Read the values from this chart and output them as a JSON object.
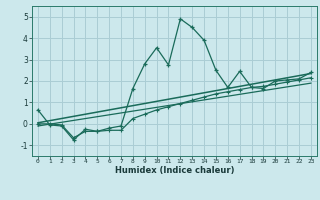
{
  "xlabel": "Humidex (Indice chaleur)",
  "bg_color": "#cce8ec",
  "grid_color": "#aacdd4",
  "line_color": "#1a6b5a",
  "xlim": [
    -0.5,
    23.5
  ],
  "ylim": [
    -1.5,
    5.5
  ],
  "xticks": [
    0,
    1,
    2,
    3,
    4,
    5,
    6,
    7,
    8,
    9,
    10,
    11,
    12,
    13,
    14,
    15,
    16,
    17,
    18,
    19,
    20,
    21,
    22,
    23
  ],
  "yticks": [
    -1,
    0,
    1,
    2,
    3,
    4,
    5
  ],
  "series1_x": [
    0,
    1,
    2,
    3,
    4,
    5,
    6,
    7,
    8,
    9,
    10,
    11,
    12,
    13,
    14,
    15,
    16,
    17,
    18,
    19,
    20,
    21,
    22,
    23
  ],
  "series1_y": [
    0.65,
    -0.05,
    -0.1,
    -0.75,
    -0.25,
    -0.35,
    -0.2,
    -0.1,
    1.65,
    2.8,
    3.55,
    2.75,
    4.9,
    4.5,
    3.9,
    2.5,
    1.7,
    2.45,
    1.7,
    1.65,
    2.0,
    2.05,
    2.1,
    2.4
  ],
  "series2_x": [
    0,
    1,
    2,
    3,
    4,
    5,
    6,
    7,
    8,
    9,
    10,
    11,
    12,
    13,
    14,
    15,
    16,
    17,
    18,
    19,
    20,
    21,
    22,
    23
  ],
  "series2_y": [
    0.0,
    0.0,
    -0.05,
    -0.65,
    -0.35,
    -0.35,
    -0.3,
    -0.3,
    0.25,
    0.45,
    0.65,
    0.8,
    0.95,
    1.1,
    1.25,
    1.4,
    1.5,
    1.6,
    1.7,
    1.75,
    1.85,
    1.95,
    2.05,
    2.15
  ],
  "series3_x": [
    0,
    23
  ],
  "series3_y": [
    0.05,
    2.35
  ],
  "series4_x": [
    0,
    23
  ],
  "series4_y": [
    -0.1,
    1.9
  ]
}
